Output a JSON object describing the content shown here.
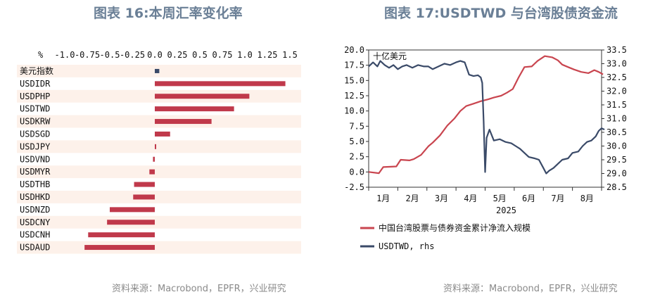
{
  "left": {
    "title": "图表 16:本周汇率变化率",
    "source": "资料来源：Macrobond，EPFR，兴业研究",
    "chart_data": {
      "type": "bar",
      "orientation": "horizontal",
      "unit": "%",
      "xlim": [
        -1.0,
        1.5
      ],
      "ticks": [
        "-1.0",
        "-0.75",
        "-0.5",
        "-0.25",
        "0.0",
        "0.25",
        "0.5",
        "0.75",
        "1.0",
        "1.25",
        "1.5"
      ],
      "tick_values": [
        -1.0,
        -0.75,
        -0.5,
        -0.25,
        0.0,
        0.25,
        0.5,
        0.75,
        1.0,
        1.25,
        1.5
      ],
      "categories": [
        "美元指数",
        "USDIDR",
        "USDPHP",
        "USDTWD",
        "USDKRW",
        "USDSGD",
        "USDJPY",
        "USDVND",
        "USDMYR",
        "USDTHB",
        "USDHKD",
        "USDNZD",
        "USDCNY",
        "USDCNH",
        "USDAUD"
      ],
      "values": [
        0.05,
        1.45,
        1.05,
        0.88,
        0.63,
        0.17,
        0.01,
        -0.02,
        -0.06,
        -0.23,
        -0.24,
        -0.5,
        -0.53,
        -0.74,
        -0.78
      ],
      "colors": {
        "bar": "#c0394b",
        "index_bar": "#3a4a68",
        "band": "#fdf1ea"
      }
    }
  },
  "right": {
    "title": "图表 17:USDTWD 与台湾股债资金流",
    "source": "资料来源：Macrobond，EPFR，兴业研究",
    "chart_data": {
      "type": "line",
      "unit_label": "十亿美元",
      "x_months": [
        "1月",
        "2月",
        "3月",
        "4月",
        "5月",
        "6月",
        "7月",
        "8月"
      ],
      "x_year": "2025",
      "ylim_left": [
        -2.5,
        20.0
      ],
      "yticks_left": [
        "20.0",
        "17.5",
        "15.0",
        "12.5",
        "10.0",
        "7.5",
        "5.0",
        "2.5",
        "0.0",
        "-2.5"
      ],
      "ylim_right": [
        28.5,
        33.5
      ],
      "yticks_right": [
        "33.5",
        "33.0",
        "32.5",
        "32.0",
        "31.5",
        "31.0",
        "30.5",
        "30.0",
        "29.5",
        "29.0",
        "28.5"
      ],
      "x_range_months": [
        0.0,
        8.0
      ],
      "series": [
        {
          "name": "中国台湾股票与债券资金累计净流入规模",
          "axis": "left",
          "color": "#c9454f",
          "x": [
            0.0,
            0.35,
            0.5,
            0.95,
            1.1,
            1.4,
            1.55,
            1.8,
            2.05,
            2.2,
            2.45,
            2.7,
            2.95,
            3.15,
            3.35,
            3.6,
            3.85,
            4.1,
            4.3,
            4.55,
            4.75,
            4.95,
            5.15,
            5.35,
            5.6,
            5.8,
            6.05,
            6.3,
            6.5,
            6.65,
            6.85,
            7.05,
            7.3,
            7.55,
            7.75,
            7.9,
            8.05
          ],
          "y": [
            0.0,
            -0.2,
            0.8,
            0.9,
            2.0,
            1.9,
            2.1,
            2.8,
            4.2,
            4.8,
            6.0,
            7.6,
            8.8,
            10.0,
            10.8,
            11.2,
            11.6,
            11.9,
            12.2,
            12.5,
            13.0,
            13.6,
            15.5,
            17.2,
            17.3,
            18.2,
            19.0,
            18.8,
            18.3,
            17.6,
            17.2,
            16.8,
            16.4,
            16.2,
            16.7,
            16.4,
            16.0
          ]
        },
        {
          "name": "USDTWD, rhs",
          "axis": "right",
          "color": "#3a4a68",
          "x": [
            0.0,
            0.15,
            0.3,
            0.4,
            0.55,
            0.7,
            0.85,
            1.0,
            1.15,
            1.3,
            1.5,
            1.7,
            1.9,
            2.05,
            2.2,
            2.4,
            2.6,
            2.8,
            3.0,
            3.15,
            3.3,
            3.45,
            3.6,
            3.75,
            3.85,
            3.9,
            3.95,
            4.0,
            4.05,
            4.15,
            4.3,
            4.5,
            4.7,
            4.9,
            5.05,
            5.2,
            5.35,
            5.5,
            5.7,
            5.85,
            6.0,
            6.1,
            6.2,
            6.35,
            6.5,
            6.65,
            6.85,
            7.0,
            7.2,
            7.35,
            7.5,
            7.65,
            7.8,
            7.9,
            8.0,
            8.1
          ],
          "y": [
            32.9,
            33.05,
            32.9,
            33.1,
            32.95,
            32.85,
            32.95,
            32.8,
            32.9,
            32.95,
            32.85,
            32.95,
            32.9,
            32.9,
            32.8,
            32.9,
            33.0,
            32.95,
            33.05,
            33.1,
            33.05,
            32.6,
            32.55,
            32.58,
            32.5,
            32.3,
            30.9,
            29.05,
            30.3,
            30.6,
            30.2,
            30.25,
            30.15,
            30.1,
            30.0,
            29.9,
            29.75,
            29.6,
            29.55,
            29.5,
            29.2,
            29.0,
            29.1,
            29.2,
            29.35,
            29.5,
            29.55,
            29.75,
            29.8,
            30.0,
            30.15,
            30.2,
            30.35,
            30.55,
            30.65,
            30.6
          ]
        }
      ]
    }
  }
}
